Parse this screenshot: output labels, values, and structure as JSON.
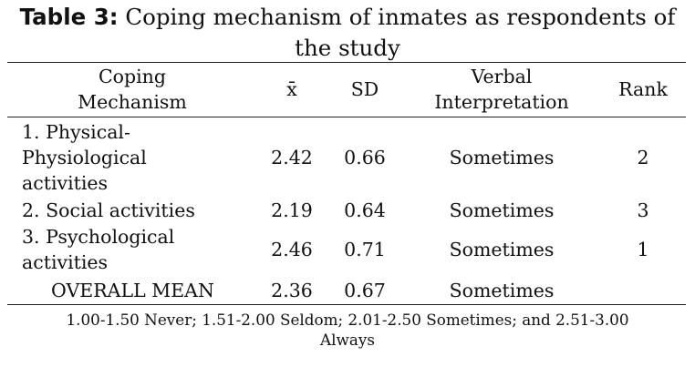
{
  "caption": {
    "label": "Table 3:",
    "text_line1": " Coping mechanism of inmates as respondents of",
    "text_line2": "the study"
  },
  "table": {
    "headers": {
      "mechanism_line1": "Coping",
      "mechanism_line2": "Mechanism",
      "mean": "x̄",
      "sd": "SD",
      "interpretation_line1": "Verbal",
      "interpretation_line2": "Interpretation",
      "rank": "Rank"
    },
    "rows": [
      {
        "mechanism_lines": [
          "1. Physical-",
          "Physiological",
          "activities"
        ],
        "mean": "2.42",
        "sd": "0.66",
        "interpretation": "Sometimes",
        "rank": "2"
      },
      {
        "mechanism_lines": [
          "2. Social activities"
        ],
        "mean": "2.19",
        "sd": "0.64",
        "interpretation": "Sometimes",
        "rank": "3"
      },
      {
        "mechanism_lines": [
          "3. Psychological",
          "activities"
        ],
        "mean": "2.46",
        "sd": "0.71",
        "interpretation": "Sometimes",
        "rank": "1"
      }
    ],
    "overall": {
      "label": "OVERALL MEAN",
      "mean": "2.36",
      "sd": "0.67",
      "interpretation": "Sometimes"
    }
  },
  "footnote": {
    "line1": "1.00-1.50 Never; 1.51-2.00 Seldom; 2.01-2.50 Sometimes; and 2.51-3.00",
    "line2": "Always"
  }
}
